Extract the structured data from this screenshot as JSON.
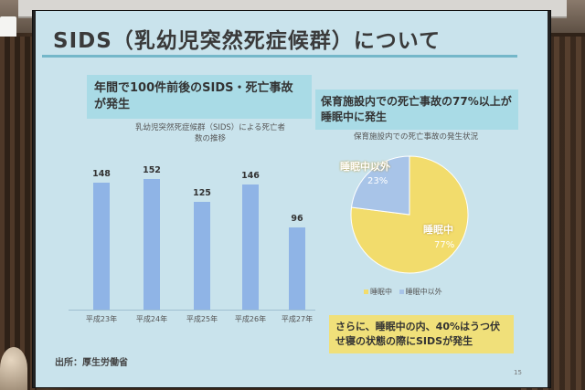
{
  "slide": {
    "title": "SIDS（乳幼児突然死症候群）について",
    "left_heading": "年間で100件前後のSIDS・死亡事故が発生",
    "right_heading": "保育施設内での死亡事故の77%以上が睡眠中に発生",
    "note": "さらに、睡眠中の内、40%はうつ伏せ寝の状態の際にSIDSが発生",
    "source": "出所：厚生労働省",
    "page_number": "15"
  },
  "chart_data": [
    {
      "type": "bar",
      "title": "乳幼児突然死症候群（SIDS）による死亡者数の推移",
      "categories": [
        "平成23年",
        "平成24年",
        "平成25年",
        "平成26年",
        "平成27年"
      ],
      "values": [
        148,
        152,
        125,
        146,
        96
      ],
      "ylim": [
        0,
        170
      ],
      "color": "#8fb4e6"
    },
    {
      "type": "pie",
      "title": "保育施設内での死亡事故の発生状況",
      "slices": [
        {
          "name": "睡眠中",
          "value": 77,
          "label": "77%",
          "color": "#f2dc6c"
        },
        {
          "name": "睡眠中以外",
          "value": 23,
          "label": "23%",
          "color": "#a8c4e8"
        }
      ],
      "legend": "bottom"
    }
  ]
}
